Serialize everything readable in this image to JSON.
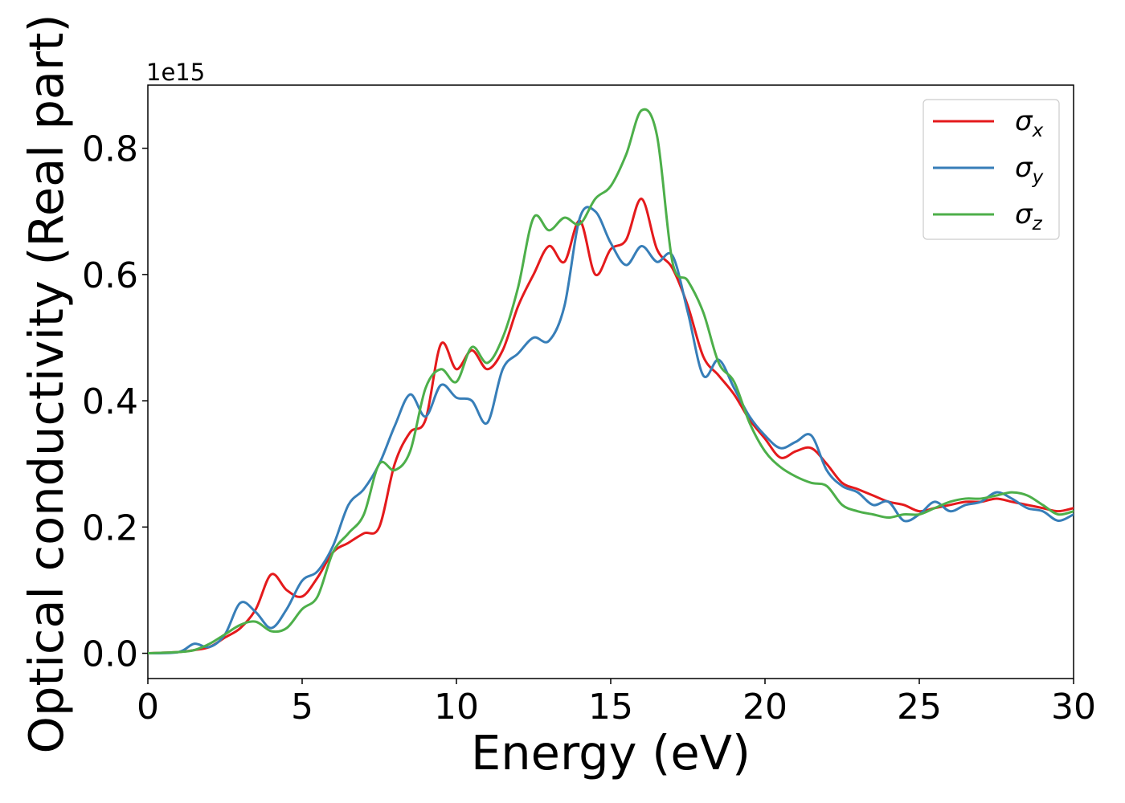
{
  "chart_data": {
    "type": "line",
    "title": "",
    "xlabel": "Energy (eV)",
    "ylabel": "Optical conductivity (Real part)",
    "y_offset_label": "1e15",
    "xlim": [
      0,
      30
    ],
    "ylim": [
      -0.04,
      0.9
    ],
    "xticks": [
      0,
      5,
      10,
      15,
      20,
      25,
      30
    ],
    "yticks": [
      0.0,
      0.2,
      0.4,
      0.6,
      0.8
    ],
    "xtick_labels": [
      "0",
      "5",
      "10",
      "15",
      "20",
      "25",
      "30"
    ],
    "ytick_labels": [
      "0.0",
      "0.2",
      "0.4",
      "0.6",
      "0.8"
    ],
    "grid": false,
    "legend_position": "top-right",
    "series": [
      {
        "name": "σx",
        "name_base": "σ",
        "name_sub": "x",
        "color": "#e41a1c",
        "x": [
          0,
          1,
          1.5,
          2,
          2.5,
          3,
          3.5,
          4,
          4.5,
          5,
          5.5,
          6,
          6.5,
          7,
          7.5,
          8,
          8.5,
          9,
          9.5,
          10,
          10.5,
          11,
          11.5,
          12,
          12.5,
          13,
          13.5,
          14,
          14.5,
          15,
          15.5,
          16,
          16.5,
          17,
          17.5,
          18,
          18.5,
          19,
          19.5,
          20,
          20.5,
          21,
          21.5,
          22,
          22.5,
          23,
          23.5,
          24,
          24.5,
          25,
          25.5,
          26,
          26.5,
          27,
          27.5,
          28,
          28.5,
          29,
          29.5,
          30
        ],
        "y": [
          0,
          0.002,
          0.005,
          0.01,
          0.025,
          0.04,
          0.07,
          0.125,
          0.1,
          0.09,
          0.12,
          0.16,
          0.175,
          0.19,
          0.2,
          0.3,
          0.35,
          0.37,
          0.49,
          0.45,
          0.48,
          0.45,
          0.48,
          0.55,
          0.6,
          0.645,
          0.62,
          0.685,
          0.6,
          0.64,
          0.655,
          0.72,
          0.64,
          0.61,
          0.55,
          0.47,
          0.44,
          0.41,
          0.37,
          0.34,
          0.31,
          0.32,
          0.325,
          0.3,
          0.27,
          0.26,
          0.25,
          0.24,
          0.235,
          0.225,
          0.23,
          0.235,
          0.24,
          0.24,
          0.245,
          0.24,
          0.235,
          0.23,
          0.225,
          0.23
        ]
      },
      {
        "name": "σy",
        "name_base": "σ",
        "name_sub": "y",
        "color": "#377eb8",
        "x": [
          0,
          1,
          1.5,
          2,
          2.5,
          3,
          3.5,
          4,
          4.5,
          5,
          5.5,
          6,
          6.5,
          7,
          7.5,
          8,
          8.5,
          9,
          9.5,
          10,
          10.5,
          11,
          11.5,
          12,
          12.5,
          13,
          13.5,
          14,
          14.5,
          15,
          15.5,
          16,
          16.5,
          17,
          17.5,
          18,
          18.5,
          19,
          19.5,
          20,
          20.5,
          21,
          21.5,
          22,
          22.5,
          23,
          23.5,
          24,
          24.5,
          25,
          25.5,
          26,
          26.5,
          27,
          27.5,
          28,
          28.5,
          29,
          29.5,
          30
        ],
        "y": [
          0,
          0.002,
          0.015,
          0.01,
          0.03,
          0.08,
          0.065,
          0.04,
          0.07,
          0.115,
          0.13,
          0.17,
          0.235,
          0.26,
          0.3,
          0.36,
          0.41,
          0.375,
          0.425,
          0.405,
          0.4,
          0.365,
          0.45,
          0.475,
          0.5,
          0.495,
          0.55,
          0.69,
          0.7,
          0.65,
          0.615,
          0.645,
          0.62,
          0.63,
          0.54,
          0.44,
          0.465,
          0.42,
          0.375,
          0.345,
          0.325,
          0.335,
          0.345,
          0.29,
          0.265,
          0.255,
          0.235,
          0.24,
          0.21,
          0.22,
          0.24,
          0.225,
          0.235,
          0.24,
          0.255,
          0.245,
          0.23,
          0.225,
          0.21,
          0.22
        ]
      },
      {
        "name": "σz",
        "name_base": "σ",
        "name_sub": "z",
        "color": "#4daf4a",
        "x": [
          0,
          1,
          1.5,
          2,
          2.5,
          3,
          3.5,
          4,
          4.5,
          5,
          5.5,
          6,
          6.5,
          7,
          7.5,
          8,
          8.5,
          9,
          9.5,
          10,
          10.5,
          11,
          11.5,
          12,
          12.5,
          13,
          13.5,
          14,
          14.5,
          15,
          15.5,
          16,
          16.5,
          17,
          17.5,
          18,
          18.5,
          19,
          19.5,
          20,
          20.5,
          21,
          21.5,
          22,
          22.5,
          23,
          23.5,
          24,
          24.5,
          25,
          25.5,
          26,
          26.5,
          27,
          27.5,
          28,
          28.5,
          29,
          29.5,
          30
        ],
        "y": [
          0,
          0.002,
          0.005,
          0.015,
          0.03,
          0.045,
          0.05,
          0.035,
          0.04,
          0.07,
          0.09,
          0.16,
          0.19,
          0.22,
          0.3,
          0.29,
          0.32,
          0.42,
          0.45,
          0.43,
          0.485,
          0.46,
          0.5,
          0.58,
          0.69,
          0.67,
          0.69,
          0.68,
          0.72,
          0.74,
          0.79,
          0.86,
          0.82,
          0.62,
          0.59,
          0.54,
          0.46,
          0.43,
          0.365,
          0.32,
          0.295,
          0.28,
          0.27,
          0.265,
          0.235,
          0.225,
          0.22,
          0.215,
          0.22,
          0.22,
          0.23,
          0.24,
          0.245,
          0.245,
          0.25,
          0.255,
          0.25,
          0.235,
          0.22,
          0.225
        ]
      }
    ]
  }
}
